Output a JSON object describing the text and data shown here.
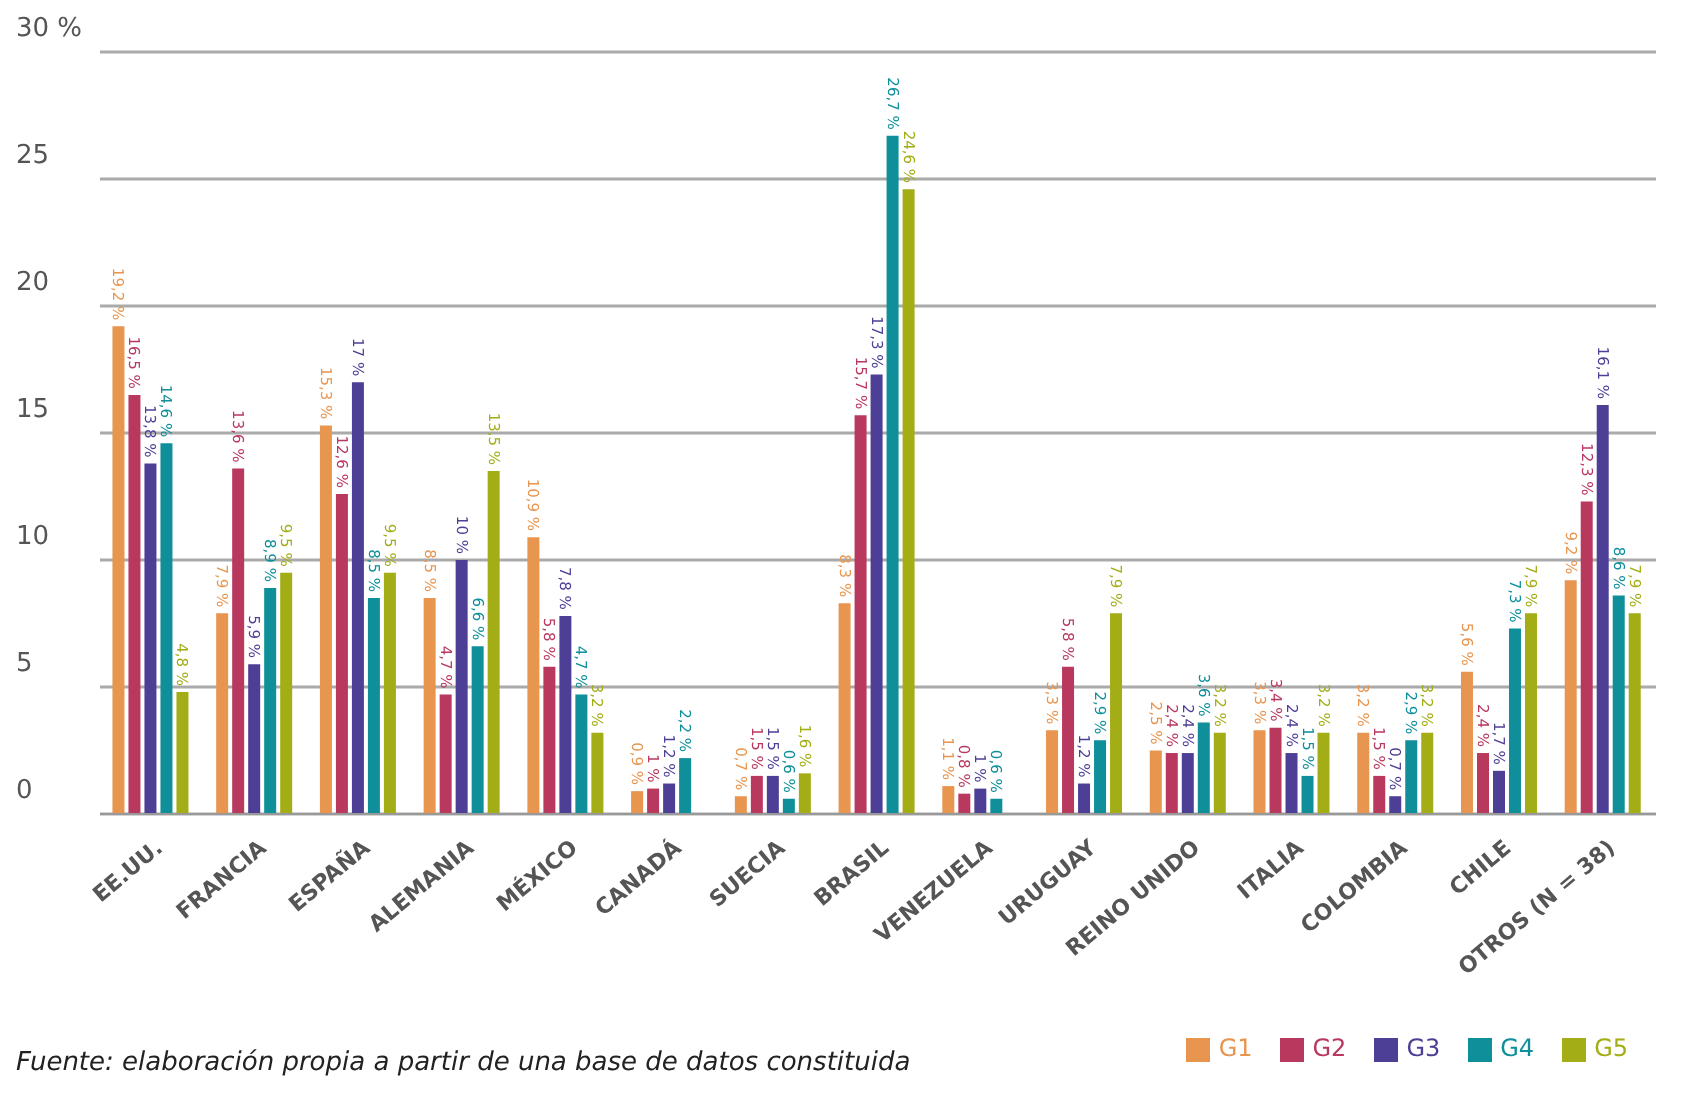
{
  "chart_data": {
    "type": "bar",
    "categories": [
      "EE.UU.",
      "FRANCIA",
      "ESPAÑA",
      "ALEMANIA",
      "MÉXICO",
      "CANADÁ",
      "SUECIA",
      "BRASIL",
      "VENEZUELA",
      "URUGUAY",
      "REINO UNIDO",
      "ITALIA",
      "COLOMBIA",
      "CHILE",
      "OTROS (N = 38)"
    ],
    "series": [
      {
        "name": "G1",
        "color": "#e8954f",
        "values": [
          19.2,
          7.9,
          15.3,
          8.5,
          10.9,
          0.9,
          0.7,
          8.3,
          1.1,
          3.3,
          2.5,
          3.3,
          3.2,
          5.6,
          9.2
        ],
        "value_labels": [
          "19,2 %",
          "7,9 %",
          "15,3 %",
          "8,5 %",
          "10,9 %",
          "0,9 %",
          "0,7 %",
          "8,3 %",
          "1,1 %",
          "3,3 %",
          "2,5 %",
          "3,3 %",
          "3,2 %",
          "5,6 %",
          "9,2 %"
        ]
      },
      {
        "name": "G2",
        "color": "#b8385e",
        "values": [
          16.5,
          13.6,
          12.6,
          4.7,
          5.8,
          1,
          1.5,
          15.7,
          0.8,
          5.8,
          2.4,
          3.4,
          1.5,
          2.4,
          12.3
        ],
        "value_labels": [
          "16,5 %",
          "13,6 %",
          "12,6 %",
          "4,7 %",
          "5,8 %",
          "1 %",
          "1,5 %",
          "15,7 %",
          "0,8 %",
          "5,8 %",
          "2,4 %",
          "3,4 %",
          "1,5 %",
          "2,4 %",
          "12,3 %"
        ]
      },
      {
        "name": "G3",
        "color": "#4e3f96",
        "values": [
          13.8,
          5.9,
          17,
          10,
          7.8,
          1.2,
          1.5,
          17.3,
          1,
          1.2,
          2.4,
          2.4,
          0.7,
          1.7,
          16.1
        ],
        "value_labels": [
          "13,8 %",
          "5,9 %",
          "17 %",
          "10 %",
          "7,8 %",
          "1,2 %",
          "1,5 %",
          "17,3 %",
          "1 %",
          "1,2 %",
          "2,4 %",
          "2,4 %",
          "0,7 %",
          "1,7 %",
          "16,1 %"
        ]
      },
      {
        "name": "G4",
        "color": "#0e8f9a",
        "values": [
          14.6,
          8.9,
          8.5,
          6.6,
          4.7,
          2.2,
          0.6,
          26.7,
          0.6,
          2.9,
          3.6,
          1.5,
          2.9,
          7.3,
          8.6
        ],
        "value_labels": [
          "14,6 %",
          "8,9 %",
          "8,5 %",
          "6,6 %",
          "4,7 %",
          "2,2 %",
          "0,6 %",
          "26,7 %",
          "0,6 %",
          "2,9 %",
          "3,6 %",
          "1,5 %",
          "2,9 %",
          "7,3 %",
          "8,6 %"
        ]
      },
      {
        "name": "G5",
        "color": "#a3ad16",
        "values": [
          4.8,
          9.5,
          9.5,
          13.5,
          3.2,
          null,
          1.6,
          24.6,
          null,
          7.9,
          3.2,
          3.2,
          3.2,
          7.9,
          7.9
        ],
        "value_labels": [
          "4,8 %",
          "9,5 %",
          "9,5 %",
          "13,5 %",
          "3,2 %",
          null,
          "1,6 %",
          "24,6 %",
          null,
          "7,9 %",
          "3,2 %",
          "3,2 %",
          "3,2 %",
          "7,9 %",
          "7,9 %"
        ]
      }
    ],
    "ylim": [
      0,
      30
    ],
    "yticks": [
      0,
      5,
      10,
      15,
      20,
      25,
      {
        "value": 30,
        "label": "30 %"
      }
    ],
    "grid": "y",
    "legend": "bottom right",
    "annotations": [
      "Fuente: elaboración propia a partir de una base de datos constituida"
    ]
  }
}
